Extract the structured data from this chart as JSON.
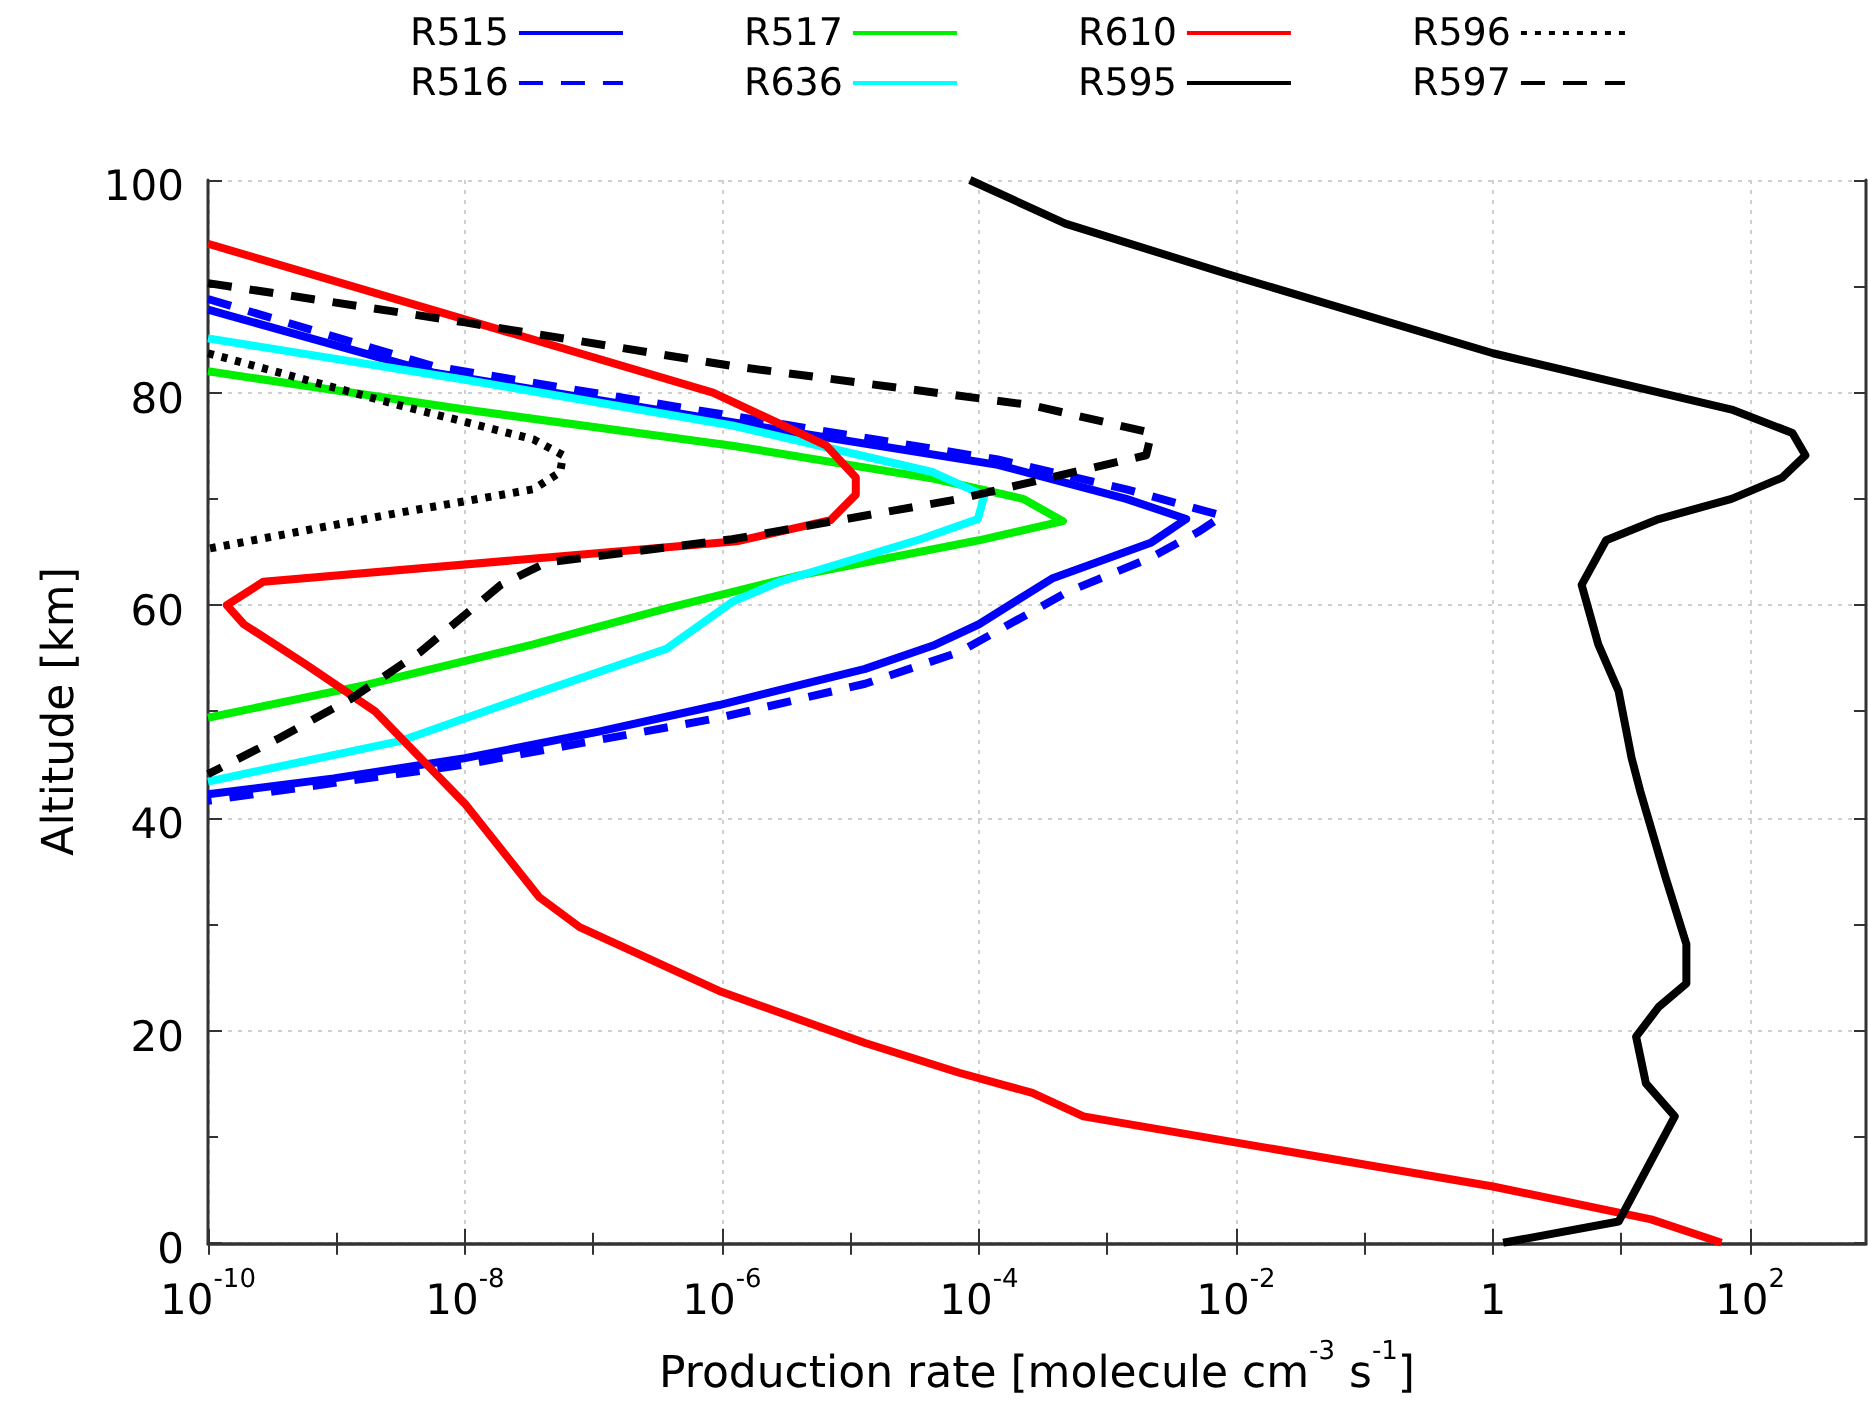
{
  "chart_data": {
    "type": "line",
    "xlabel": "Production rate [molecule cm$^{-3}$ s$^{-1}$]",
    "ylabel": "Altitude [km]",
    "xlim": [
      1e-10,
      800
    ],
    "ylim": [
      0,
      100
    ],
    "log": "x",
    "grid": true,
    "legend": "top",
    "marker": "none",
    "xticks": [
      {
        "value": 1e-10,
        "label": "10$^{-10}$"
      },
      {
        "value": 1e-09,
        "label": null
      },
      {
        "value": 1e-08,
        "label": "10$^{-8}$"
      },
      {
        "value": 1e-07,
        "label": null
      },
      {
        "value": 1e-06,
        "label": "10$^{-6}$"
      },
      {
        "value": 1e-05,
        "label": null
      },
      {
        "value": 0.0001,
        "label": "10$^{-4}$"
      },
      {
        "value": 0.001,
        "label": null
      },
      {
        "value": 0.01,
        "label": "10$^{-2}$"
      },
      {
        "value": 0.1,
        "label": null
      },
      {
        "value": 1,
        "label": "1"
      },
      {
        "value": 10,
        "label": null
      },
      {
        "value": 100,
        "label": "10$^{2}$"
      }
    ],
    "yticks": [
      0,
      {
        "value": 10,
        "label": null
      },
      20,
      {
        "value": 30,
        "label": null
      },
      40,
      {
        "value": 50,
        "label": null
      },
      60,
      {
        "value": 70,
        "label": null
      },
      80,
      {
        "value": 90,
        "label": null
      },
      100
    ],
    "series": [
      {
        "name": "R515",
        "color": "#0000ff",
        "line_style": "solid",
        "x": [
          1e-10,
          5.6e-09,
          1.2e-06,
          0.00014,
          0.0014,
          0.0041,
          0.0022,
          0.00037,
          0.0001,
          4.4e-05,
          1.3e-05,
          9.5e-07,
          1.1e-07,
          1e-08,
          9.5e-10,
          1e-10
        ],
        "values": [
          87.8,
          81.9,
          77.2,
          73.2,
          70,
          68.1,
          65.9,
          62.5,
          58.2,
          56.2,
          54,
          50.6,
          48.1,
          45.6,
          43.7,
          42.2
        ]
      },
      {
        "name": "R516",
        "color": "#0000ff",
        "line_style": "dashed",
        "x": [
          1e-10,
          5.6e-09,
          1.2e-06,
          0.00014,
          0.0014,
          0.0079,
          0.0051,
          0.0022,
          0.00048,
          7.1e-05,
          1.3e-05,
          9.5e-07,
          1e-08,
          1e-10
        ],
        "values": [
          88.8,
          82.5,
          77.8,
          73.7,
          70.9,
          68.4,
          66.9,
          64.5,
          61.2,
          55.6,
          52.6,
          49.4,
          45,
          41.6
        ]
      },
      {
        "name": "R517",
        "color": "#00ee00",
        "line_style": "solid",
        "x": [
          1e-10,
          1e-08,
          1.2e-06,
          4.4e-05,
          0.00022,
          0.00045,
          0.0001,
          4e-06,
          3.7e-07,
          3.4e-08,
          1.7e-09,
          1e-10
        ],
        "values": [
          82,
          78.4,
          75,
          71.9,
          70,
          67.9,
          66.1,
          62.8,
          59.7,
          56.3,
          52.5,
          49.4
        ]
      },
      {
        "name": "R636",
        "color": "#00ffff",
        "line_style": "solid",
        "x": [
          1e-10,
          1e-08,
          1.2e-06,
          4.4e-05,
          0.00011,
          9.8e-05,
          3.5e-05,
          2.8e-06,
          1.2e-06,
          3.7e-07,
          3.4e-08,
          3.1e-09,
          1e-10
        ],
        "values": [
          85.1,
          81.2,
          76.9,
          72.5,
          70.3,
          68.1,
          66.2,
          62.2,
          60.3,
          55.9,
          51.6,
          47.2,
          43.4
        ]
      },
      {
        "name": "R610",
        "color": "#ff0000",
        "line_style": "solid",
        "x": [
          1e-10,
          8.5e-07,
          6.5e-06,
          1.1e-05,
          1.1e-05,
          7e-06,
          1.3e-06,
          7e-08,
          2.7e-10,
          1.4e-10,
          1.9e-10,
          5.8e-10,
          2e-09,
          1e-08,
          3.8e-08,
          7.8e-08,
          9.5e-07,
          1.3e-05,
          7e-05,
          0.00026,
          0.00065,
          0.0093,
          1,
          17,
          60
        ],
        "values": [
          94,
          80,
          75,
          72,
          70.4,
          68,
          66,
          64.7,
          62.2,
          60,
          58.2,
          54.4,
          50,
          41.3,
          32.5,
          29.7,
          23.7,
          18.8,
          16,
          14.1,
          11.9,
          9.5,
          5.3,
          2.2,
          0
        ]
      },
      {
        "name": "R595",
        "color": "#000000",
        "line_style": "solid",
        "x": [
          8.5e-05,
          0.00047,
          0.0083,
          1,
          72,
          214,
          270,
          178,
          72,
          19.5,
          7.6,
          4.9,
          6.6,
          9.5,
          12,
          14,
          22,
          32,
          32,
          19.5,
          13,
          15.5,
          26,
          9.5,
          1.2
        ],
        "values": [
          100,
          95.9,
          91.2,
          83.7,
          78.4,
          76.2,
          74.1,
          72,
          70,
          68.1,
          66.1,
          61.9,
          56.3,
          51.9,
          45.6,
          42.5,
          34.4,
          28.1,
          24.4,
          22.2,
          19.4,
          15,
          11.9,
          2,
          0
        ]
      },
      {
        "name": "R596",
        "color": "#000000",
        "line_style": "dotted",
        "x": [
          1e-10,
          3.1e-09,
          3.4e-08,
          5.8e-08,
          5.5e-08,
          3.4e-08,
          3.1e-09,
          1e-10
        ],
        "values": [
          83.7,
          78.8,
          75.6,
          74.1,
          72.5,
          70.9,
          68.7,
          65.3
        ]
      },
      {
        "name": "R597",
        "color": "#000000",
        "line_style": "dashed",
        "x": [
          1e-10,
          1e-08,
          1.2e-06,
          0.00026,
          0.0022,
          0.002,
          0.00026,
          7.1e-05,
          1.2e-06,
          4.3e-08,
          1.9e-08,
          4.5e-09,
          1.3e-09,
          3.6e-10,
          1e-10
        ],
        "values": [
          90.3,
          86.6,
          82.5,
          78.8,
          76.2,
          74.1,
          71.6,
          70,
          66.2,
          64,
          61.9,
          55.6,
          51.2,
          47.5,
          44.1
        ]
      }
    ]
  }
}
